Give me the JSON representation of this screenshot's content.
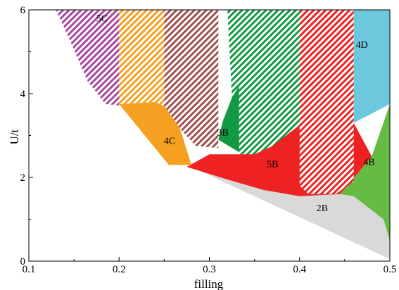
{
  "chart_data": {
    "type": "area",
    "title": "",
    "xlabel": "filling",
    "ylabel": "U/t",
    "xlim": [
      0.1,
      0.5
    ],
    "ylim": [
      0,
      6
    ],
    "x_ticks": [
      0.1,
      0.2,
      0.3,
      0.4,
      0.5
    ],
    "x_tick_labels": [
      "0.1",
      "0.2",
      "0.3",
      "0.4",
      "0.5"
    ],
    "y_ticks": [
      0,
      2,
      4,
      6
    ],
    "y_tick_labels": [
      "0",
      "2",
      "4",
      "6"
    ],
    "grid": false,
    "colors": {
      "2B": "#d9d9d9",
      "4B": "#66bb44",
      "4D": "#6cc8dc",
      "5B": "#ee2222",
      "4C": "#f5a020",
      "3B": "#119944",
      "5C": "#b04aa0",
      "hatch_5C": "#a848a0",
      "hatch_orange": "#f5a020",
      "hatch_brown": "#a05050",
      "hatch_green": "#119944",
      "hatch_red": "#ee2222"
    },
    "regions": [
      {
        "label": "2B",
        "fill": "solid",
        "color_key": "2B",
        "label_at": [
          0.425,
          1.25
        ],
        "points": [
          [
            0.28,
            2.25
          ],
          [
            0.5,
            0.05
          ],
          [
            0.5,
            0.95
          ],
          [
            0.46,
            1.8
          ],
          [
            0.4,
            1.6
          ]
        ]
      },
      {
        "label": "4B",
        "fill": "solid",
        "color_key": "4B",
        "label_at": [
          0.477,
          2.35
        ],
        "points": [
          [
            0.445,
            1.6
          ],
          [
            0.48,
            2.5
          ],
          [
            0.5,
            3.75
          ],
          [
            0.5,
            0.5
          ],
          [
            0.493,
            1.0
          ],
          [
            0.46,
            1.55
          ]
        ]
      },
      {
        "label": "4D",
        "fill": "solid",
        "color_key": "4D",
        "label_at": [
          0.469,
          5.15
        ],
        "points": [
          [
            0.46,
            6.0
          ],
          [
            0.5,
            6.0
          ],
          [
            0.5,
            3.75
          ],
          [
            0.46,
            3.3
          ]
        ]
      },
      {
        "label": "5B",
        "fill": "solid",
        "color_key": "5B",
        "label_at": [
          0.37,
          2.3
        ],
        "points": [
          [
            0.275,
            2.25
          ],
          [
            0.3,
            2.55
          ],
          [
            0.333,
            2.55
          ],
          [
            0.37,
            3.0
          ],
          [
            0.41,
            3.45
          ],
          [
            0.46,
            3.3
          ],
          [
            0.48,
            2.5
          ],
          [
            0.445,
            1.6
          ],
          [
            0.4,
            1.55
          ],
          [
            0.36,
            1.7
          ],
          [
            0.32,
            1.95
          ]
        ]
      },
      {
        "label": "4C",
        "fill": "solid",
        "color_key": "4C",
        "label_at": [
          0.256,
          2.85
        ],
        "points": [
          [
            0.2,
            3.75
          ],
          [
            0.24,
            3.8
          ],
          [
            0.25,
            3.7
          ],
          [
            0.262,
            3.5
          ],
          [
            0.27,
            3.0
          ],
          [
            0.28,
            2.3
          ],
          [
            0.255,
            2.3
          ]
        ]
      },
      {
        "label": "3B",
        "fill": "solid",
        "color_key": "3B",
        "label_at": [
          0.315,
          3.05
        ],
        "points": [
          [
            0.31,
            2.9
          ],
          [
            0.315,
            3.35
          ],
          [
            0.325,
            3.9
          ],
          [
            0.333,
            4.2
          ],
          [
            0.333,
            2.6
          ]
        ]
      },
      {
        "label": "5C",
        "fill": "hatch",
        "color_key": "hatch_5C",
        "label_at": [
          0.181,
          5.78
        ],
        "points": [
          [
            0.13,
            6.0
          ],
          [
            0.2,
            6.0
          ],
          [
            0.2,
            3.72
          ],
          [
            0.185,
            3.75
          ],
          [
            0.165,
            4.3
          ],
          [
            0.145,
            5.3
          ]
        ]
      },
      {
        "label": "",
        "fill": "hatch",
        "color_key": "hatch_orange",
        "label_at": null,
        "points": [
          [
            0.2,
            6.0
          ],
          [
            0.25,
            6.0
          ],
          [
            0.25,
            3.7
          ],
          [
            0.24,
            3.8
          ],
          [
            0.2,
            3.75
          ]
        ]
      },
      {
        "label": "",
        "fill": "hatch",
        "color_key": "hatch_brown",
        "label_at": null,
        "points": [
          [
            0.25,
            6.0
          ],
          [
            0.31,
            6.0
          ],
          [
            0.31,
            2.7
          ],
          [
            0.285,
            2.75
          ],
          [
            0.27,
            3.1
          ],
          [
            0.25,
            3.7
          ]
        ]
      },
      {
        "label": "",
        "fill": "hatch",
        "color_key": "hatch_green",
        "label_at": null,
        "points": [
          [
            0.32,
            6.0
          ],
          [
            0.4,
            6.0
          ],
          [
            0.4,
            3.25
          ],
          [
            0.37,
            2.75
          ],
          [
            0.35,
            2.55
          ],
          [
            0.333,
            2.55
          ],
          [
            0.333,
            4.2
          ],
          [
            0.325,
            3.9
          ]
        ]
      },
      {
        "label": "",
        "fill": "hatch",
        "color_key": "hatch_red",
        "label_at": null,
        "points": [
          [
            0.4,
            6.0
          ],
          [
            0.46,
            6.0
          ],
          [
            0.46,
            1.9
          ],
          [
            0.44,
            1.6
          ],
          [
            0.41,
            1.6
          ],
          [
            0.4,
            1.8
          ]
        ]
      }
    ]
  }
}
